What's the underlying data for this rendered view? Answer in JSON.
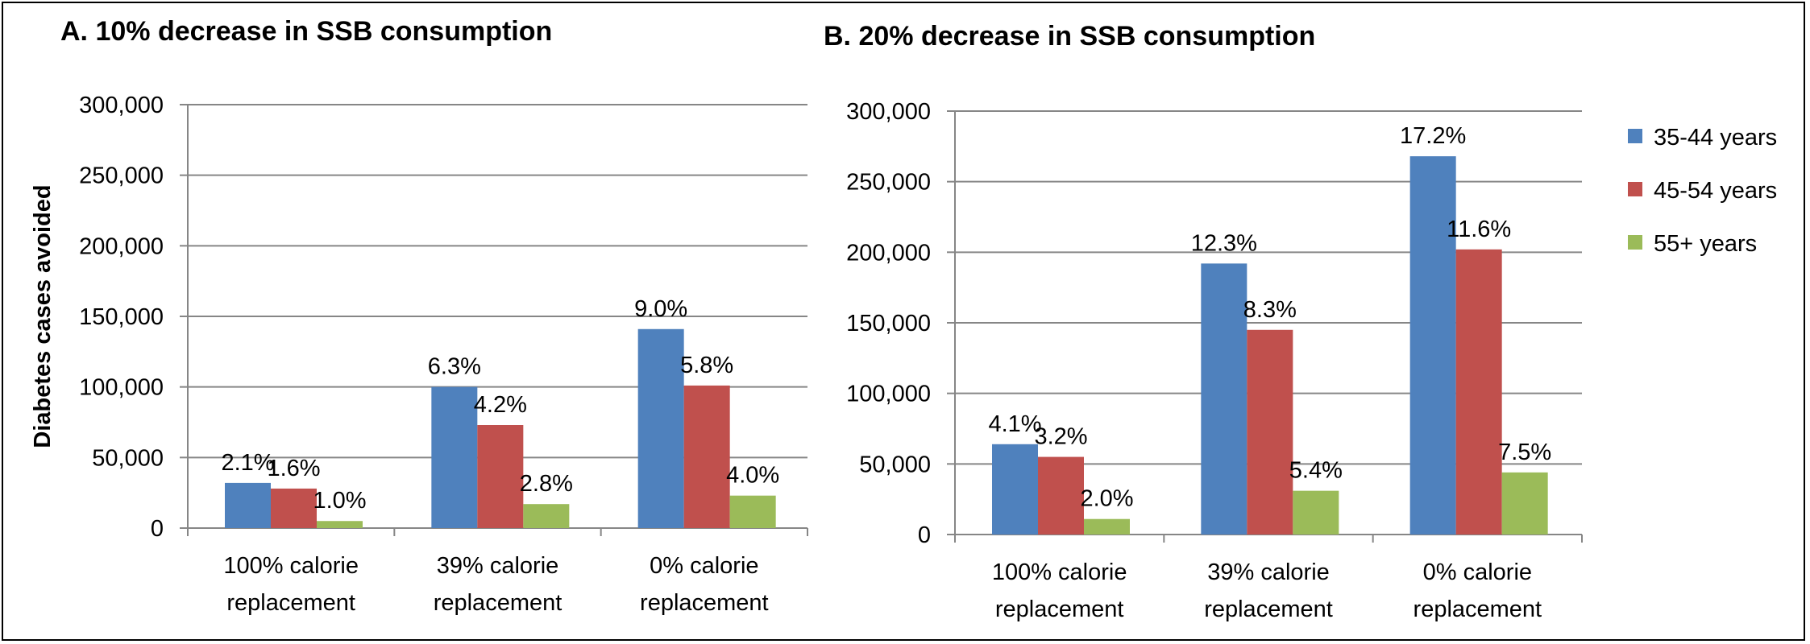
{
  "chart_data": [
    {
      "type": "bar",
      "title": "A. 10% decrease in SSB consumption",
      "ylabel": "Diabetes cases avoided",
      "xlabel": "",
      "ylim": [
        0,
        300000
      ],
      "yticks": [
        0,
        50000,
        100000,
        150000,
        200000,
        250000,
        300000
      ],
      "ytick_labels": [
        "0",
        "50,000",
        "100,000",
        "150,000",
        "200,000",
        "250,000",
        "300,000"
      ],
      "grid": true,
      "categories": [
        [
          "100% calorie",
          "replacement"
        ],
        [
          "39% calorie",
          "replacement"
        ],
        [
          "0% calorie",
          "replacement"
        ]
      ],
      "series": [
        {
          "name": "35-44 years",
          "values": [
            32000,
            100000,
            141000
          ],
          "labels": [
            "2.1%",
            "6.3%",
            "9.0%"
          ]
        },
        {
          "name": "45-54 years",
          "values": [
            28000,
            73000,
            101000
          ],
          "labels": [
            "1.6%",
            "4.2%",
            "5.8%"
          ]
        },
        {
          "name": "55+ years",
          "values": [
            5000,
            17000,
            23000
          ],
          "labels": [
            "1.0%",
            "2.8%",
            "4.0%"
          ]
        }
      ]
    },
    {
      "type": "bar",
      "title": "B. 20% decrease in SSB consumption",
      "ylabel": "",
      "xlabel": "",
      "ylim": [
        0,
        300000
      ],
      "yticks": [
        0,
        50000,
        100000,
        150000,
        200000,
        250000,
        300000
      ],
      "ytick_labels": [
        "0",
        "50,000",
        "100,000",
        "150,000",
        "200,000",
        "250,000",
        "300,000"
      ],
      "grid": true,
      "legend": "right",
      "categories": [
        [
          "100% calorie",
          "replacement"
        ],
        [
          "39% calorie",
          "replacement"
        ],
        [
          "0% calorie",
          "replacement"
        ]
      ],
      "series": [
        {
          "name": "35-44 years",
          "values": [
            64000,
            192000,
            268000
          ],
          "labels": [
            "4.1%",
            "12.3%",
            "17.2%"
          ]
        },
        {
          "name": "45-54 years",
          "values": [
            55000,
            145000,
            202000
          ],
          "labels": [
            "3.2%",
            "8.3%",
            "11.6%"
          ]
        },
        {
          "name": "55+ years",
          "values": [
            11000,
            31000,
            44000
          ],
          "labels": [
            "2.0%",
            "5.4%",
            "7.5%"
          ]
        }
      ]
    }
  ],
  "colors": {
    "series": [
      "#4f81bd",
      "#c0504d",
      "#9bbb59"
    ],
    "grid": "#868686",
    "axis": "#868686"
  },
  "legend": {
    "items": [
      "35-44 years",
      "45-54 years",
      "55+ years"
    ]
  }
}
